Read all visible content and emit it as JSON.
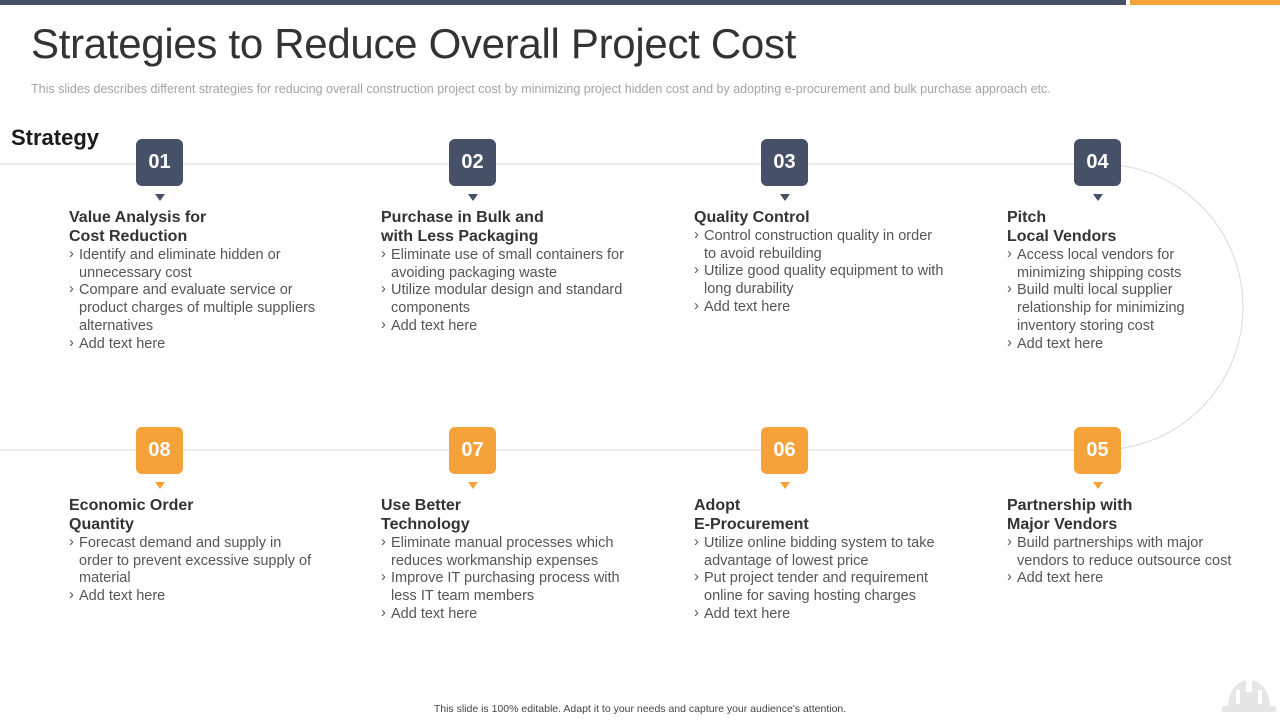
{
  "header": {
    "title": "Strategies to Reduce Overall Project Cost",
    "subtitle": "This slides describes different  strategies for reducing overall  construction project cost by minimizing project hidden cost and by adopting  e-procurement  and bulk purchase approach etc."
  },
  "section_label": "Strategy",
  "colors": {
    "dark": "#465066",
    "accent": "#f4a239",
    "line": "#d9d9d9"
  },
  "steps": [
    {
      "number": "01",
      "title": "Value Analysis for\nCost Reduction",
      "bullets": [
        "Identify and eliminate hidden or unnecessary cost",
        "Compare and evaluate service or product charges of multiple suppliers alternatives",
        "Add text  here"
      ]
    },
    {
      "number": "02",
      "title": "Purchase in Bulk and\nwith Less Packaging",
      "bullets": [
        "Eliminate use of small containers for avoiding packaging waste",
        "Utilize modular design and standard components",
        "Add text  here"
      ]
    },
    {
      "number": "03",
      "title": "Quality Control\n ",
      "bullets": [
        "Control construction quality in order to avoid rebuilding",
        "Utilize good quality equipment to with long durability",
        "Add text  here"
      ]
    },
    {
      "number": "04",
      "title": "Pitch\nLocal Vendors",
      "bullets": [
        "Access local vendors for minimizing shipping costs",
        "Build multi local supplier relationship for minimizing inventory storing cost",
        "Add text  here"
      ]
    },
    {
      "number": "05",
      "title": "Partnership with\nMajor Vendors",
      "bullets": [
        "Build partnerships with major vendors to reduce outsource cost",
        "Add text  here"
      ]
    },
    {
      "number": "06",
      "title": "Adopt\nE-Procurement",
      "bullets": [
        "Utilize online bidding  system to take advantage of lowest price",
        "Put project tender and requirement online for saving hosting charges",
        "Add text  here"
      ]
    },
    {
      "number": "07",
      "title": "Use Better\nTechnology",
      "bullets": [
        "Eliminate manual processes which reduces workmanship expenses",
        "Improve IT purchasing process with less IT team members",
        "Add text  here"
      ]
    },
    {
      "number": "08",
      "title": "Economic Order\nQuantity",
      "bullets": [
        "Forecast demand and supply in order to prevent excessive supply of material",
        "Add text  here"
      ]
    }
  ],
  "footer": "This slide is 100% editable.  Adapt it to your needs and capture your audience's attention.",
  "icons": {
    "footer_logo": "helmet-icon"
  }
}
